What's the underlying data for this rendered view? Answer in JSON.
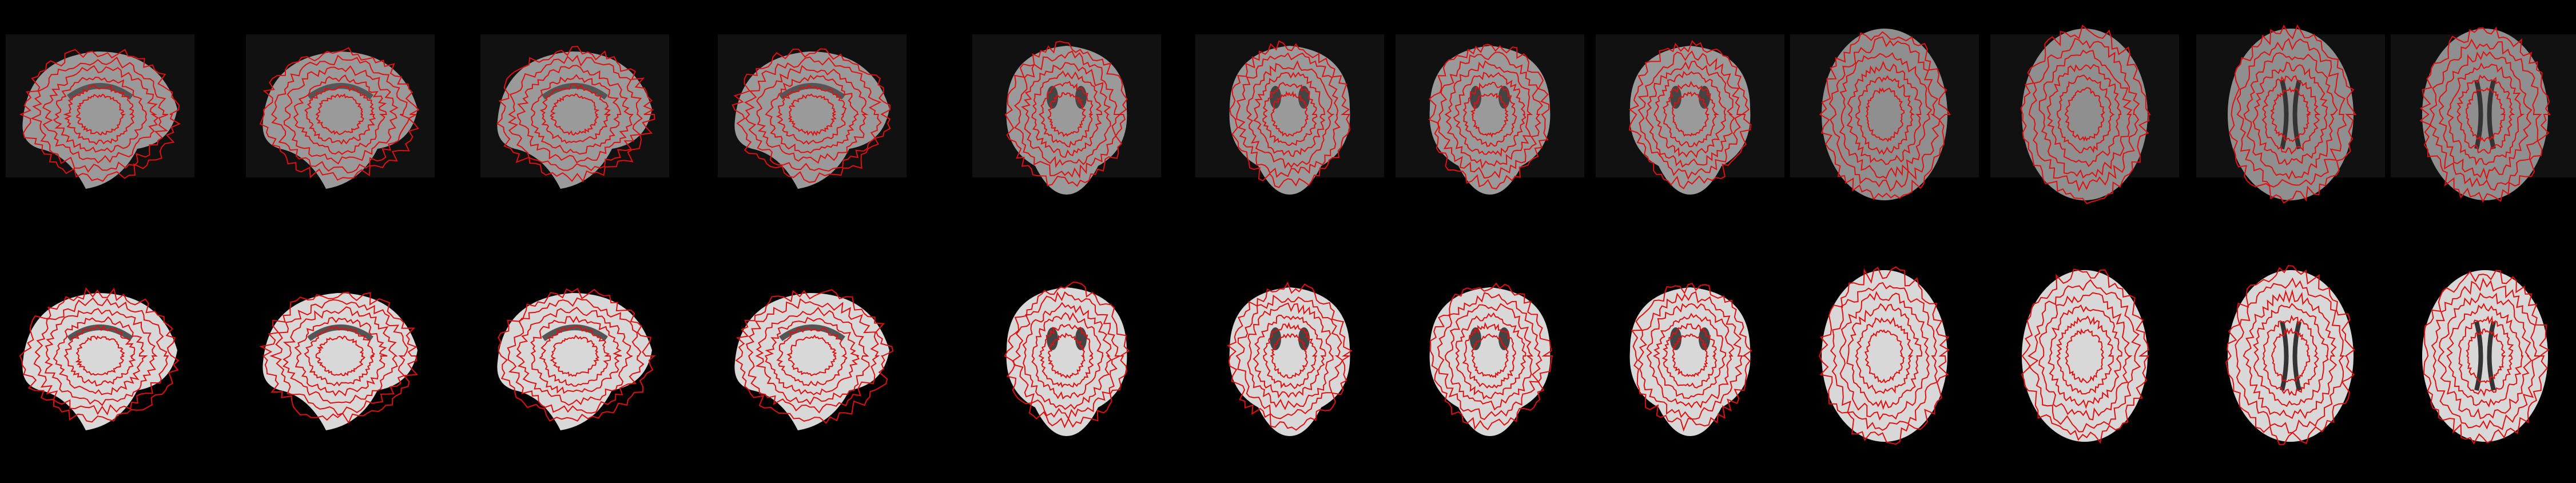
{
  "figure": {
    "title": "",
    "rows": [
      {
        "name": "functional-row",
        "slices": [
          {
            "plane": "sagittal"
          },
          {
            "plane": "sagittal"
          },
          {
            "plane": "sagittal"
          },
          {
            "plane": "sagittal"
          },
          {
            "plane": "coronal"
          },
          {
            "plane": "coronal"
          },
          {
            "plane": "coronal"
          },
          {
            "plane": "coronal"
          },
          {
            "plane": "axial"
          },
          {
            "plane": "axial"
          },
          {
            "plane": "axial"
          },
          {
            "plane": "axial"
          }
        ]
      },
      {
        "name": "anatomical-row",
        "slices": [
          {
            "plane": "sagittal"
          },
          {
            "plane": "sagittal"
          },
          {
            "plane": "sagittal"
          },
          {
            "plane": "sagittal"
          },
          {
            "plane": "coronal"
          },
          {
            "plane": "coronal"
          },
          {
            "plane": "coronal"
          },
          {
            "plane": "coronal"
          },
          {
            "plane": "axial"
          },
          {
            "plane": "axial"
          },
          {
            "plane": "axial"
          },
          {
            "plane": "axial"
          }
        ]
      }
    ],
    "colors": {
      "background": "#000000",
      "contour": "#e01010",
      "tissue_light": "#d8d8d8",
      "tissue_mid": "#8a8a8a",
      "tissue_dark": "#2a2a2a"
    }
  }
}
